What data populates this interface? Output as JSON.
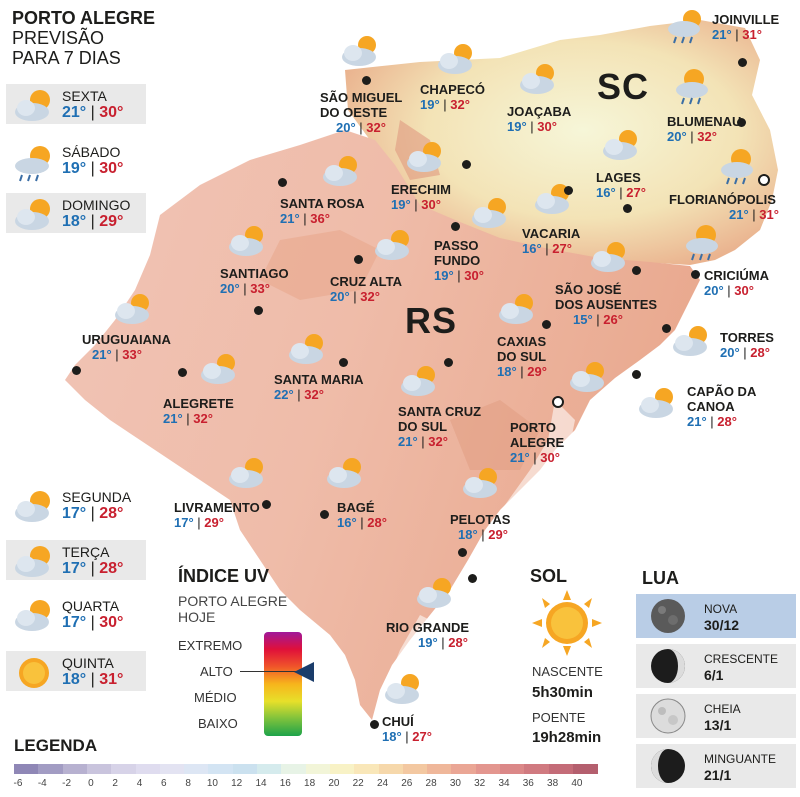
{
  "header": {
    "title": "PORTO ALEGRE",
    "subtitle_1": "PREVISÃO",
    "subtitle_2": "PARA 7 DIAS"
  },
  "forecast": [
    {
      "day": "SEXTA",
      "min": "21°",
      "max": "30°",
      "icon": "partly-cloudy-icon"
    },
    {
      "day": "SÁBADO",
      "min": "19°",
      "max": "30°",
      "icon": "sun-rain-icon"
    },
    {
      "day": "DOMINGO",
      "min": "18°",
      "max": "29°",
      "icon": "partly-cloudy-icon"
    },
    {
      "day": "SEGUNDA",
      "min": "17°",
      "max": "28°",
      "icon": "partly-cloudy-icon"
    },
    {
      "day": "TERÇA",
      "min": "17°",
      "max": "28°",
      "icon": "partly-cloudy-icon"
    },
    {
      "day": "QUARTA",
      "min": "17°",
      "max": "30°",
      "icon": "partly-cloudy-icon"
    },
    {
      "day": "QUINTA",
      "min": "18°",
      "max": "31°",
      "icon": "sun-icon"
    }
  ],
  "states": {
    "rs": "RS",
    "sc": "SC"
  },
  "cities": [
    {
      "id": "joinville",
      "name_1": "JOINVILLE",
      "name_2": "",
      "min": "21°",
      "max": "31°",
      "icon": "sun-rain-icon"
    },
    {
      "id": "chapeco",
      "name_1": "CHAPECÓ",
      "name_2": "",
      "min": "19°",
      "max": "32°",
      "icon": "partly-cloudy-icon"
    },
    {
      "id": "sao-miguel",
      "name_1": "SÃO MIGUEL",
      "name_2": "DO OESTE",
      "min": "20°",
      "max": "32°",
      "icon": "partly-cloudy-icon"
    },
    {
      "id": "joacaba",
      "name_1": "JOAÇABA",
      "name_2": "",
      "min": "19°",
      "max": "30°",
      "icon": "partly-cloudy-icon"
    },
    {
      "id": "blumenau",
      "name_1": "BLUMENAU",
      "name_2": "",
      "min": "20°",
      "max": "32°",
      "icon": "sun-rain-icon"
    },
    {
      "id": "lages",
      "name_1": "LAGES",
      "name_2": "",
      "min": "16°",
      "max": "27°",
      "icon": "partly-cloudy-icon"
    },
    {
      "id": "florianopolis",
      "name_1": "FLORIANÓPOLIS",
      "name_2": "",
      "min": "21°",
      "max": "31°",
      "icon": "sun-rain-icon"
    },
    {
      "id": "santa-rosa",
      "name_1": "SANTA ROSA",
      "name_2": "",
      "min": "21°",
      "max": "36°",
      "icon": "partly-cloudy-icon"
    },
    {
      "id": "erechim",
      "name_1": "ERECHIM",
      "name_2": "",
      "min": "19°",
      "max": "30°",
      "icon": "partly-cloudy-icon"
    },
    {
      "id": "vacaria",
      "name_1": "VACARIA",
      "name_2": "",
      "min": "16°",
      "max": "27°",
      "icon": "partly-cloudy-icon"
    },
    {
      "id": "passo-fundo",
      "name_1": "PASSO",
      "name_2": "FUNDO",
      "min": "19°",
      "max": "30°",
      "icon": "partly-cloudy-icon"
    },
    {
      "id": "santiago",
      "name_1": "SANTIAGO",
      "name_2": "",
      "min": "20°",
      "max": "33°",
      "icon": "partly-cloudy-icon"
    },
    {
      "id": "cruz-alta",
      "name_1": "CRUZ ALTA",
      "name_2": "",
      "min": "20°",
      "max": "32°",
      "icon": "partly-cloudy-icon"
    },
    {
      "id": "criciuma",
      "name_1": "CRICIÚMA",
      "name_2": "",
      "min": "20°",
      "max": "30°",
      "icon": "sun-rain-icon"
    },
    {
      "id": "sao-jose",
      "name_1": "SÃO JOSÉ",
      "name_2": "DOS AUSENTES",
      "min": "15°",
      "max": "26°",
      "icon": "partly-cloudy-icon"
    },
    {
      "id": "uruguaiana",
      "name_1": "URUGUAIANA",
      "name_2": "",
      "min": "21°",
      "max": "33°",
      "icon": "partly-cloudy-icon"
    },
    {
      "id": "caxias",
      "name_1": "CAXIAS",
      "name_2": "DO SUL",
      "min": "18°",
      "max": "29°",
      "icon": "partly-cloudy-icon"
    },
    {
      "id": "torres",
      "name_1": "TORRES",
      "name_2": "",
      "min": "20°",
      "max": "28°",
      "icon": "partly-cloudy-icon"
    },
    {
      "id": "santa-maria",
      "name_1": "SANTA MARIA",
      "name_2": "",
      "min": "22°",
      "max": "32°",
      "icon": "partly-cloudy-icon"
    },
    {
      "id": "alegrete",
      "name_1": "ALEGRETE",
      "name_2": "",
      "min": "21°",
      "max": "32°",
      "icon": "partly-cloudy-icon"
    },
    {
      "id": "santa-cruz",
      "name_1": "SANTA CRUZ",
      "name_2": "DO SUL",
      "min": "21°",
      "max": "32°",
      "icon": "partly-cloudy-icon"
    },
    {
      "id": "porto-alegre",
      "name_1": "PORTO",
      "name_2": "ALEGRE",
      "min": "21°",
      "max": "30°",
      "icon": "partly-cloudy-icon"
    },
    {
      "id": "capao",
      "name_1": "CAPÃO DA",
      "name_2": "CANOA",
      "min": "21°",
      "max": "28°",
      "icon": "partly-cloudy-icon"
    },
    {
      "id": "livramento",
      "name_1": "LIVRAMENTO",
      "name_2": "",
      "min": "17°",
      "max": "29°",
      "icon": "partly-cloudy-icon"
    },
    {
      "id": "bage",
      "name_1": "BAGÉ",
      "name_2": "",
      "min": "16°",
      "max": "28°",
      "icon": "partly-cloudy-icon"
    },
    {
      "id": "pelotas",
      "name_1": "PELOTAS",
      "name_2": "",
      "min": "18°",
      "max": "29°",
      "icon": "partly-cloudy-icon"
    },
    {
      "id": "rio-grande",
      "name_1": "RIO GRANDE",
      "name_2": "",
      "min": "19°",
      "max": "28°",
      "icon": "partly-cloudy-icon"
    },
    {
      "id": "chui",
      "name_1": "CHUÍ",
      "name_2": "",
      "min": "18°",
      "max": "27°",
      "icon": "partly-cloudy-icon"
    }
  ],
  "uv": {
    "title": "ÍNDICE UV",
    "place": "PORTO ALEGRE",
    "when": "HOJE",
    "levels": [
      "EXTREMO",
      "ALTO",
      "MÉDIO",
      "BAIXO"
    ],
    "current": "ALTO",
    "current_fraction": 0.55,
    "gradient_colors": [
      "#a0189a",
      "#e0103a",
      "#f0552a",
      "#f7b51c",
      "#e7e02a",
      "#7ec23c",
      "#1ea34a"
    ]
  },
  "sun": {
    "title": "SOL",
    "sunrise_label": "NASCENTE",
    "sunrise": "5h30min",
    "sunset_label": "POENTE",
    "sunset": "19h28min",
    "icon": "sun-icon"
  },
  "moon": {
    "title": "LUA",
    "phases": [
      {
        "name": "NOVA",
        "date": "30/12",
        "icon": "new-moon-icon",
        "selected": true
      },
      {
        "name": "CRESCENTE",
        "date": "6/1",
        "icon": "crescent-moon-icon",
        "selected": false
      },
      {
        "name": "CHEIA",
        "date": "13/1",
        "icon": "full-moon-icon",
        "selected": false
      },
      {
        "name": "MINGUANTE",
        "date": "21/1",
        "icon": "waning-moon-icon",
        "selected": false
      }
    ]
  },
  "legend": {
    "title": "LEGENDA",
    "values": [
      "-6",
      "-4",
      "-2",
      "0",
      "2",
      "4",
      "6",
      "8",
      "10",
      "12",
      "14",
      "16",
      "18",
      "20",
      "22",
      "24",
      "26",
      "28",
      "30",
      "32",
      "34",
      "36",
      "38",
      "40"
    ],
    "colors": [
      "#8f87b6",
      "#a29cc3",
      "#b7b1d0",
      "#c9c4dd",
      "#d7d3e8",
      "#dfdcef",
      "#e3e3f2",
      "#dde6f4",
      "#d3e4f3",
      "#cbe1ef",
      "#d5ebed",
      "#e7f3e6",
      "#f2f5d8",
      "#f8f2c6",
      "#f9e7b9",
      "#f6d8ab",
      "#f3c8a1",
      "#efb79a",
      "#eaa695",
      "#e3968f",
      "#db8888",
      "#d07a80",
      "#c46c78",
      "#b45f6e"
    ]
  },
  "colors": {
    "min_temp": "#1f6fb3",
    "max_temp": "#c8202f",
    "card_bg": "#e9e9e9",
    "selected_card": "#b9cde6"
  }
}
